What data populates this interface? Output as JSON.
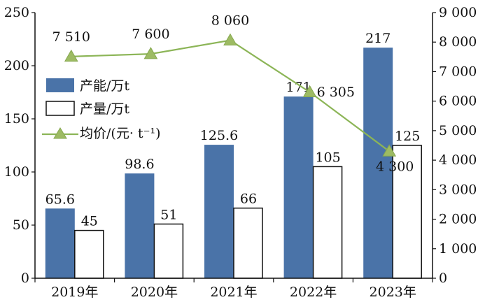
{
  "chart_data": {
    "type": "bar",
    "title": "",
    "categories": [
      "2019年",
      "2020年",
      "2021年",
      "2022年",
      "2023年"
    ],
    "series": [
      {
        "name": "产能/万t",
        "kind": "bar",
        "axis": "left",
        "color": "#4a73a8",
        "values": [
          65.6,
          98.6,
          125.6,
          171,
          217
        ],
        "value_labels": [
          "65.6",
          "98.6",
          "125.6",
          "171",
          "217"
        ]
      },
      {
        "name": "产量/万t",
        "kind": "bar",
        "axis": "left",
        "color": "#ffffff",
        "stroke": "#111111",
        "values": [
          45,
          51,
          66,
          105,
          125
        ],
        "value_labels": [
          "45",
          "51",
          "66",
          "105",
          "125"
        ]
      },
      {
        "name": "均价/(元· t⁻¹)",
        "kind": "line",
        "marker": "triangle",
        "axis": "right",
        "color": "#8cb557",
        "values": [
          7510,
          7600,
          8060,
          6305,
          4300
        ],
        "value_labels": [
          "7 510",
          "7 600",
          "8 060",
          "6 305",
          "4 300"
        ]
      }
    ],
    "left_axis": {
      "ylim": [
        0,
        250
      ],
      "ticks": [
        "0",
        "50",
        "100",
        "150",
        "200",
        "250"
      ],
      "tick_values": [
        0,
        50,
        100,
        150,
        200,
        250
      ]
    },
    "right_axis": {
      "ylim": [
        0,
        9000
      ],
      "ticks": [
        "0",
        "1 000",
        "2 000",
        "3 000",
        "4 000",
        "5 000",
        "6 000",
        "7 000",
        "8 000",
        "9 000"
      ],
      "tick_values": [
        0,
        1000,
        2000,
        3000,
        4000,
        5000,
        6000,
        7000,
        8000,
        9000
      ]
    },
    "grid": false,
    "legend_position": "upper-left"
  }
}
